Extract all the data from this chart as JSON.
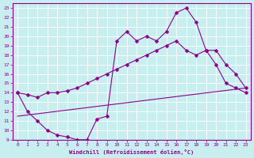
{
  "xlabel": "Windchill (Refroidissement éolien,°C)",
  "xlim": [
    -0.5,
    23.5
  ],
  "ylim": [
    9,
    23.5
  ],
  "xticks": [
    0,
    1,
    2,
    3,
    4,
    5,
    6,
    7,
    8,
    9,
    10,
    11,
    12,
    13,
    14,
    15,
    16,
    17,
    18,
    19,
    20,
    21,
    22,
    23
  ],
  "yticks": [
    9,
    10,
    11,
    12,
    13,
    14,
    15,
    16,
    17,
    18,
    19,
    20,
    21,
    22,
    23
  ],
  "bg_color": "#c8eef0",
  "line_color": "#8b008b",
  "grid_color": "#ffffff",
  "line1_x": [
    0,
    1,
    2,
    3,
    4,
    5,
    6,
    7,
    8,
    9,
    10,
    11,
    12,
    13,
    14,
    15,
    16,
    17,
    18,
    19,
    20,
    21,
    22,
    23
  ],
  "line1_y": [
    14,
    12,
    11,
    10,
    9.5,
    9.3,
    9.0,
    9.0,
    11.2,
    11.5,
    19.5,
    20.5,
    19.5,
    20,
    19.5,
    20.5,
    22.5,
    23,
    21.5,
    18.5,
    17,
    15,
    14.5,
    14
  ],
  "line2_x": [
    0,
    1,
    2,
    3,
    4,
    5,
    6,
    7,
    8,
    9,
    10,
    11,
    12,
    13,
    14,
    15,
    16,
    17,
    18,
    19,
    20,
    21,
    22,
    23
  ],
  "line2_y": [
    14,
    13.8,
    13.5,
    14,
    14,
    14.2,
    14.5,
    15.0,
    15.5,
    16.0,
    16.5,
    17.0,
    17.5,
    18.0,
    18.5,
    19.0,
    19.5,
    18.5,
    18.0,
    18.5,
    18.5,
    17.0,
    16.0,
    14.5
  ],
  "line3_x": [
    0,
    23
  ],
  "line3_y": [
    11.5,
    14.5
  ],
  "marker": "D",
  "markersize": 2.5
}
